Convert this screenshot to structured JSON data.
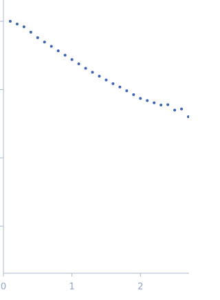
{
  "chart_data": {
    "type": "scatter",
    "log_y": true,
    "color": "#3a64b0",
    "x": [
      0.1,
      0.2,
      0.3,
      0.4,
      0.5,
      0.6,
      0.7,
      0.8,
      0.9,
      1.0,
      1.1,
      1.2,
      1.3,
      1.4,
      1.5,
      1.6,
      1.7,
      1.8,
      1.9,
      2.0,
      2.1,
      2.2,
      2.3,
      2.4,
      2.5,
      2.6,
      2.7
    ],
    "values": [
      1.0,
      0.912,
      0.832,
      0.692,
      0.575,
      0.497,
      0.429,
      0.37,
      0.319,
      0.275,
      0.238,
      0.205,
      0.179,
      0.157,
      0.138,
      0.122,
      0.109,
      0.0959,
      0.0843,
      0.0741,
      0.0689,
      0.064,
      0.0594,
      0.06,
      0.05,
      0.052,
      0.04
    ],
    "xlim": [
      0,
      2.71
    ],
    "xticks": [
      0,
      1,
      2
    ],
    "ylim": [
      0.000204,
      2.05
    ],
    "yticks": [
      1,
      0.1,
      0.01,
      0.001
    ]
  }
}
